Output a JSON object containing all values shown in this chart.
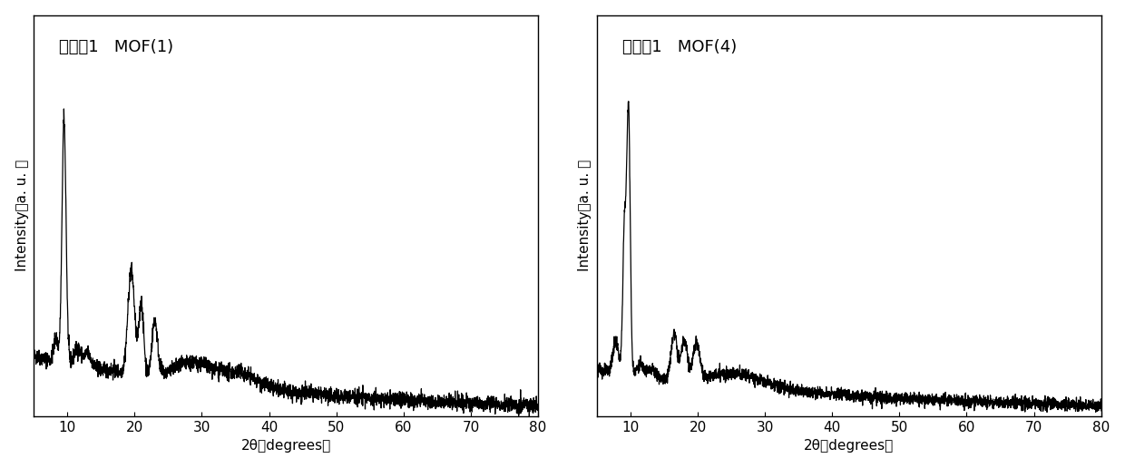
{
  "fig_width": 12.4,
  "fig_height": 5.16,
  "dpi": 100,
  "background_color": "#ffffff",
  "line_color": "#000000",
  "line_width": 0.9,
  "xlim": [
    5,
    80
  ],
  "xticks": [
    10,
    20,
    30,
    40,
    50,
    60,
    70,
    80
  ],
  "xlabel": "2θ（degrees）",
  "ylabel_line1": "Intensity（a. u. ）",
  "plot1_title": "实施例1   MOF(1)",
  "plot2_title": "对比例1   MOF(4)",
  "title_fontsize": 13,
  "axis_fontsize": 11,
  "tick_fontsize": 11,
  "seed1": 42,
  "seed2": 123
}
